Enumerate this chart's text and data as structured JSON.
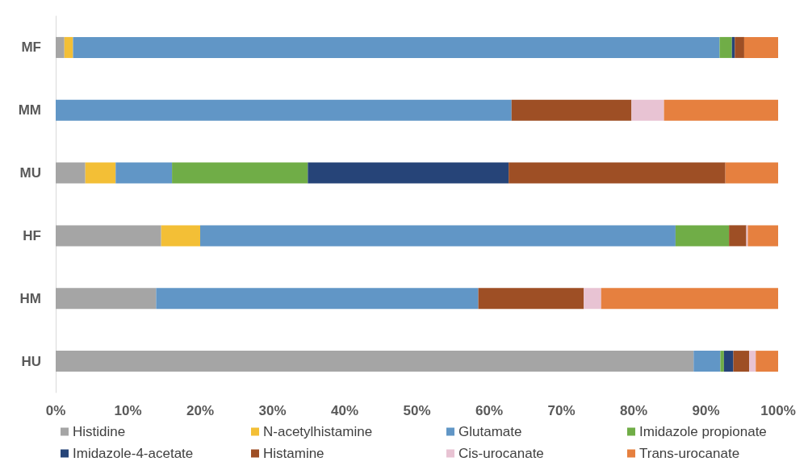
{
  "chart_data": {
    "type": "bar",
    "orientation": "horizontal",
    "stacked": true,
    "categories": [
      "MF",
      "MM",
      "MU",
      "HF",
      "HM",
      "HU"
    ],
    "series": [
      {
        "name": "Histidine",
        "color": "#a5a5a5",
        "values": [
          1.2,
          0,
          4.1,
          14.6,
          13.9,
          88.3
        ]
      },
      {
        "name": "N-acetylhistamine",
        "color": "#f3bf36",
        "values": [
          1.2,
          0,
          4.2,
          5.4,
          0,
          0
        ]
      },
      {
        "name": "Glutamate",
        "color": "#6196c6",
        "values": [
          89.5,
          63.1,
          7.8,
          65.8,
          44.6,
          3.7
        ]
      },
      {
        "name": "Imidazole propionate",
        "color": "#70ad47",
        "values": [
          1.7,
          0,
          18.8,
          7.4,
          0,
          0.5
        ]
      },
      {
        "name": "Imidazole-4-acetate",
        "color": "#264478",
        "values": [
          0.4,
          0,
          27.8,
          0,
          0,
          1.3
        ]
      },
      {
        "name": "Histamine",
        "color": "#9e4f25",
        "values": [
          1.3,
          16.6,
          30.0,
          2.4,
          14.6,
          2.2
        ]
      },
      {
        "name": "Cis-urocanate",
        "color": "#e8c3d3",
        "values": [
          0,
          4.5,
          0,
          0.2,
          2.4,
          0.9
        ]
      },
      {
        "name": "Trans-urocanate",
        "color": "#e6803f",
        "values": [
          4.7,
          15.8,
          7.3,
          4.2,
          24.5,
          3.1
        ]
      }
    ],
    "xlim": [
      0,
      100
    ],
    "xticks": [
      {
        "value": 0,
        "label": "0%"
      },
      {
        "value": 10,
        "label": "10%"
      },
      {
        "value": 20,
        "label": "20%"
      },
      {
        "value": 30,
        "label": "30%"
      },
      {
        "value": 40,
        "label": "40%"
      },
      {
        "value": 50,
        "label": "50%"
      },
      {
        "value": 60,
        "label": "60%"
      },
      {
        "value": 70,
        "label": "70%"
      },
      {
        "value": 80,
        "label": "80%"
      },
      {
        "value": 90,
        "label": "90%"
      },
      {
        "value": 100,
        "label": "100%"
      }
    ],
    "grid": false,
    "legend": "bottom"
  }
}
